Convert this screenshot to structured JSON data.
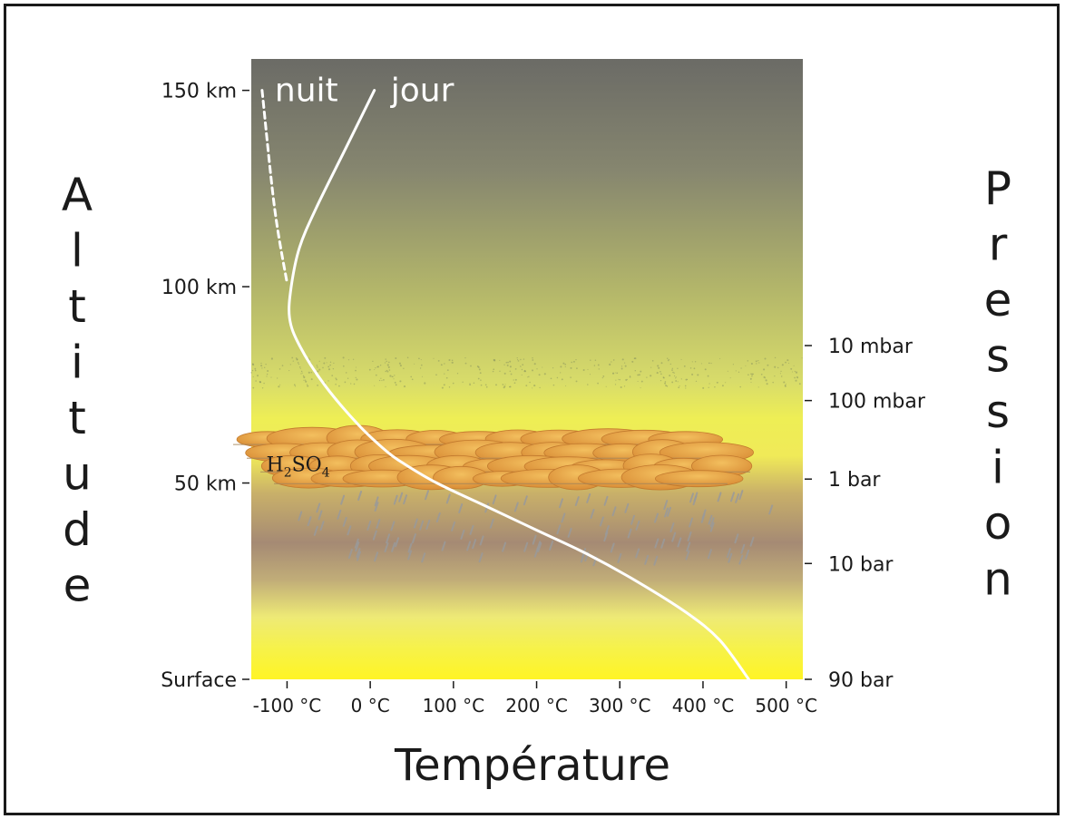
{
  "chart_data": {
    "type": "line",
    "xlabel": "Température",
    "ylabel_left": "Altitude",
    "ylabel_right": "Pression",
    "x_ticks": [
      {
        "value": -100,
        "label": "-100 °C"
      },
      {
        "value": 0,
        "label": "0 °C"
      },
      {
        "value": 100,
        "label": "100 °C"
      },
      {
        "value": 200,
        "label": "200 °C"
      },
      {
        "value": 300,
        "label": "300 °C"
      },
      {
        "value": 400,
        "label": "400 °C"
      },
      {
        "value": 500,
        "label": "500 °C"
      }
    ],
    "y_ticks_left": [
      {
        "value": 150,
        "label": "150  km"
      },
      {
        "value": 100,
        "label": "100  km"
      },
      {
        "value": 50,
        "label": "50  km"
      },
      {
        "value": 0,
        "label": "Surface"
      }
    ],
    "y_ticks_right": [
      {
        "value": 85,
        "label": "10 mbar"
      },
      {
        "value": 71,
        "label": "100 mbar"
      },
      {
        "value": 51,
        "label": "1 bar"
      },
      {
        "value": 29.5,
        "label": "10 bar"
      },
      {
        "value": 0,
        "label": "90 bar"
      }
    ],
    "xlim": [
      -143,
      520
    ],
    "ylim": [
      0,
      158
    ],
    "series": [
      {
        "name": "jour",
        "style": "solid",
        "color": "#ffffff",
        "points": [
          [
            5,
            150
          ],
          [
            -30,
            135
          ],
          [
            -65,
            120
          ],
          [
            -85,
            110
          ],
          [
            -95,
            100
          ],
          [
            -97,
            92
          ],
          [
            -85,
            85
          ],
          [
            -55,
            75
          ],
          [
            -15,
            65
          ],
          [
            20,
            58
          ],
          [
            40,
            55
          ],
          [
            80,
            50
          ],
          [
            140,
            44
          ],
          [
            200,
            38
          ],
          [
            260,
            32
          ],
          [
            320,
            25
          ],
          [
            380,
            17
          ],
          [
            420,
            10
          ],
          [
            455,
            0
          ]
        ]
      },
      {
        "name": "nuit",
        "style": "dashed",
        "color": "#ffffff",
        "points": [
          [
            -130,
            150
          ],
          [
            -115,
            120
          ],
          [
            -100,
            101
          ]
        ]
      }
    ],
    "annotations": [
      {
        "text": "H2SO4",
        "x": -125,
        "y": 53
      }
    ]
  },
  "colors": {
    "sky_top": "#6e6e68",
    "haze": "#d8dc70",
    "bright_yellow": "#f5f040",
    "brown_band": "#a68a72",
    "surface_yellow": "#fff520",
    "curve": "#ffffff",
    "text": "#1a1a1a",
    "cloud_fill": "#eba24a",
    "cloud_edge": "#c27a2e",
    "rain": "#9a9a9a"
  }
}
